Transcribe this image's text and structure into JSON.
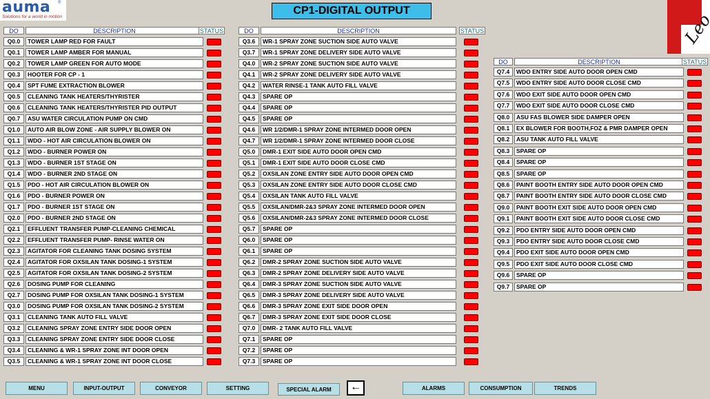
{
  "brand": {
    "logo": "auma",
    "tagline": "Solutions for a world in motion",
    "logo_mark": "Leo"
  },
  "title": "CP1-DIGITAL OUTPUT",
  "headers": {
    "do": "DO",
    "description": "DESCRIPTION",
    "status": "STATUS"
  },
  "status_color": "#ff0000",
  "columns": [
    [
      {
        "do": "Q0.0",
        "desc": "TOWER LAMP RED FOR FAULT"
      },
      {
        "do": "Q0.1",
        "desc": "TOWER LAMP AMBER FOR MANUAL"
      },
      {
        "do": "Q0.2",
        "desc": "TOWER LAMP GREEN FOR AUTO MODE"
      },
      {
        "do": "Q0.3",
        "desc": "HOOTER FOR  CP - 1"
      },
      {
        "do": "Q0.4",
        "desc": "SPT FUME EXTRACTION BLOWER"
      },
      {
        "do": "Q0.5",
        "desc": "CLEANING TANK HEATERS/THYRISTER"
      },
      {
        "do": "Q0.6",
        "desc": "CLEANING TANK HEATERS/THYRISTER PID OUTPUT"
      },
      {
        "do": "Q0.7",
        "desc": "ASU WATER CIRCULATION PUMP ON CMD"
      },
      {
        "do": "Q1.0",
        "desc": "AUTO AIR BLOW ZONE - AIR SUPPLY BLOWER ON"
      },
      {
        "do": "Q1.1",
        "desc": "WDO - HOT AIR CIRCULATION BLOWER ON"
      },
      {
        "do": "Q1.2",
        "desc": "WDO - BURNER POWER ON"
      },
      {
        "do": "Q1.3",
        "desc": "WDO - BURNER 1ST STAGE ON"
      },
      {
        "do": "Q1.4",
        "desc": "WDO - BURNER 2ND STAGE ON"
      },
      {
        "do": "Q1.5",
        "desc": "PDO - HOT AIR CIRCULATION BLOWER ON"
      },
      {
        "do": "Q1.6",
        "desc": "PDO - BURNER POWER ON"
      },
      {
        "do": "Q1.7",
        "desc": "PDO - BURNER 1ST STAGE ON"
      },
      {
        "do": "Q2.0",
        "desc": "PDO - BURNER 2ND STAGE ON"
      },
      {
        "do": "Q2.1",
        "desc": "EFFLUENT TRANSFER PUMP-CLEANING CHEMICAL"
      },
      {
        "do": "Q2.2",
        "desc": "EFFLUENT TRANSFER PUMP- RINSE WATER ON"
      },
      {
        "do": "Q2.3",
        "desc": "AGITATOR FOR CLEANING TANK DOSING SYSTEM"
      },
      {
        "do": "Q2.4",
        "desc": "AGITATOR FOR OXSILAN TANK DOSING-1 SYSTEM"
      },
      {
        "do": "Q2.5",
        "desc": "AGITATOR FOR OXSILAN TANK DOSING-2 SYSTEM"
      },
      {
        "do": "Q2.6",
        "desc": "DOSING PUMP FOR CLEANING"
      },
      {
        "do": "Q2.7",
        "desc": "DOSING PUMP FOR  OXSILAN TANK DOSING-1 SYSTEM"
      },
      {
        "do": "Q3.0",
        "desc": "DOSING PUMP FOR  OXSILAN TANK DOSING-2 SYSTEM"
      },
      {
        "do": "Q3.1",
        "desc": "CLEANING TANK AUTO FILL VALVE"
      },
      {
        "do": "Q3.2",
        "desc": "CLEANING SPRAY ZONE ENTRY SIDE DOOR OPEN"
      },
      {
        "do": "Q3.3",
        "desc": "CLEANING SPRAY ZONE ENTRY SIDE DOOR CLOSE"
      },
      {
        "do": "Q3.4",
        "desc": "CLEANING & WR-1 SPRAY ZONE INT DOOR OPEN"
      },
      {
        "do": "Q3.5",
        "desc": "CLEANING & WR-1 SPRAY ZONE INT DOOR CLOSE"
      }
    ],
    [
      {
        "do": "Q3.6",
        "desc": "WR-1 SPRAY ZONE SUCTION SIDE AUTO VALVE"
      },
      {
        "do": "Q3.7",
        "desc": "WR-1 SPRAY ZONE DELIVERY SIDE AUTO VALVE"
      },
      {
        "do": "Q4.0",
        "desc": "WR-2 SPRAY ZONE SUCTION SIDE AUTO VALVE"
      },
      {
        "do": "Q4.1",
        "desc": "WR-2 SPRAY ZONE DELIVERY SIDE AUTO VALVE"
      },
      {
        "do": "Q4.2",
        "desc": "WATER RINSE-1 TANK AUTO FILL VALVE"
      },
      {
        "do": "Q4.3",
        "desc": "SPARE OP"
      },
      {
        "do": "Q4.4",
        "desc": "SPARE OP"
      },
      {
        "do": "Q4.5",
        "desc": "SPARE OP"
      },
      {
        "do": "Q4.6",
        "desc": "WR 1/2/DMR-1 SPRAY ZONE INTERMED DOOR OPEN"
      },
      {
        "do": "Q4.7",
        "desc": "WR 1/2/DMR-1 SPRAY ZONE INTERMED DOOR CLOSE"
      },
      {
        "do": "Q5.0",
        "desc": "DMR-1 EXIT SIDE AUTO DOOR OPEN CMD"
      },
      {
        "do": "Q5.1",
        "desc": "DMR-1 EXIT SIDE AUTO DOOR CLOSE CMD"
      },
      {
        "do": "Q5.2",
        "desc": "OXSILAN ZONE ENTRY SIDE AUTO DOOR OPEN CMD"
      },
      {
        "do": "Q5.3",
        "desc": "OXSILAN ZONE ENTRY SIDE AUTO DOOR CLOSE CMD"
      },
      {
        "do": "Q5.4",
        "desc": "OXSILAN TANK AUTO FILL VALVE"
      },
      {
        "do": "Q5.5",
        "desc": "OXSILAN/DMR-2&3 SPRAY ZONE INTERMED DOOR OPEN"
      },
      {
        "do": "Q5.6",
        "desc": "OXSILAN/DMR-2&3 SPRAY ZONE INTERMED DOOR CLOSE"
      },
      {
        "do": "Q5.7",
        "desc": "SPARE OP"
      },
      {
        "do": "Q6.0",
        "desc": "SPARE OP"
      },
      {
        "do": "Q6.1",
        "desc": "SPARE OP"
      },
      {
        "do": "Q6.2",
        "desc": "DMR-2 SPRAY ZONE SUCTION SIDE AUTO VALVE"
      },
      {
        "do": "Q6.3",
        "desc": "DMR-2 SPRAY ZONE DELIVERY SIDE AUTO VALVE"
      },
      {
        "do": "Q6.4",
        "desc": "DMR-3 SPRAY ZONE SUCTION SIDE AUTO VALVE"
      },
      {
        "do": "Q6.5",
        "desc": "DMR-3 SPRAY ZONE DELIVERY SIDE AUTO VALVE"
      },
      {
        "do": "Q6.6",
        "desc": "DMR-3 SPRAY ZONE EXIT SIDE DOOR OPEN"
      },
      {
        "do": "Q6.7",
        "desc": "DMR-3 SPRAY ZONE EXIT SIDE DOOR CLOSE"
      },
      {
        "do": "Q7.0",
        "desc": "DMR- 2 TANK AUTO FILL VALVE"
      },
      {
        "do": "Q7.1",
        "desc": "SPARE OP"
      },
      {
        "do": "Q7.2",
        "desc": "SPARE OP"
      },
      {
        "do": "Q7.3",
        "desc": "SPARE OP"
      }
    ],
    [
      {
        "do": "Q7.4",
        "desc": "WDO ENTRY SIDE AUTO DOOR OPEN CMD"
      },
      {
        "do": "Q7.5",
        "desc": "WDO ENTRY SIDE AUTO DOOR CLOSE CMD"
      },
      {
        "do": "Q7.6",
        "desc": "WDO EXIT SIDE AUTO DOOR OPEN CMD"
      },
      {
        "do": "Q7.7",
        "desc": "WDO EXIT SIDE AUTO DOOR CLOSE CMD"
      },
      {
        "do": "Q8.0",
        "desc": "ASU FAS BLOWER SIDE  DAMPER OPEN"
      },
      {
        "do": "Q8.1",
        "desc": "EX BLOWER FOR BOOTH,FOZ & PMR DAMPER OPEN"
      },
      {
        "do": "Q8.2",
        "desc": "ASU TANK AUTO FILL VALVE"
      },
      {
        "do": "Q8.3",
        "desc": "SPARE OP"
      },
      {
        "do": "Q8.4",
        "desc": "SPARE OP"
      },
      {
        "do": "Q8.5",
        "desc": "SPARE OP"
      },
      {
        "do": "Q8.6",
        "desc": "PAINT BOOTH ENTRY SIDE AUTO DOOR OPEN CMD"
      },
      {
        "do": "Q8.7",
        "desc": "PAINT BOOTH ENTRY SIDE AUTO DOOR CLOSE CMD"
      },
      {
        "do": "Q9.0",
        "desc": "PAINT BOOTH EXIT SIDE AUTO DOOR OPEN CMD"
      },
      {
        "do": "Q9.1",
        "desc": "PAINT BOOTH EXIT SIDE AUTO DOOR CLOSE CMD"
      },
      {
        "do": "Q9.2",
        "desc": "PDO ENTRY SIDE AUTO DOOR OPEN CMD"
      },
      {
        "do": "Q9.3",
        "desc": "PDO ENTRY SIDE AUTO DOOR CLOSE CMD"
      },
      {
        "do": "Q9.4",
        "desc": "PDO EXIT SIDE AUTO DOOR OPEN CMD"
      },
      {
        "do": "Q9.5",
        "desc": "PDO EXIT SIDE AUTO DOOR CLOSE CMD"
      },
      {
        "do": "Q9.6",
        "desc": "SPARE OP"
      },
      {
        "do": "Q9.7",
        "desc": "SPARE OP"
      }
    ]
  ],
  "nav_buttons": [
    "MENU",
    "INPUT-OUTPUT",
    "CONVEYOR",
    "SETTING",
    "SPECIAL ALARM",
    "ALARMS",
    "CONSUMPTION",
    "TRENDS"
  ],
  "back_icon": "left-arrow-icon"
}
